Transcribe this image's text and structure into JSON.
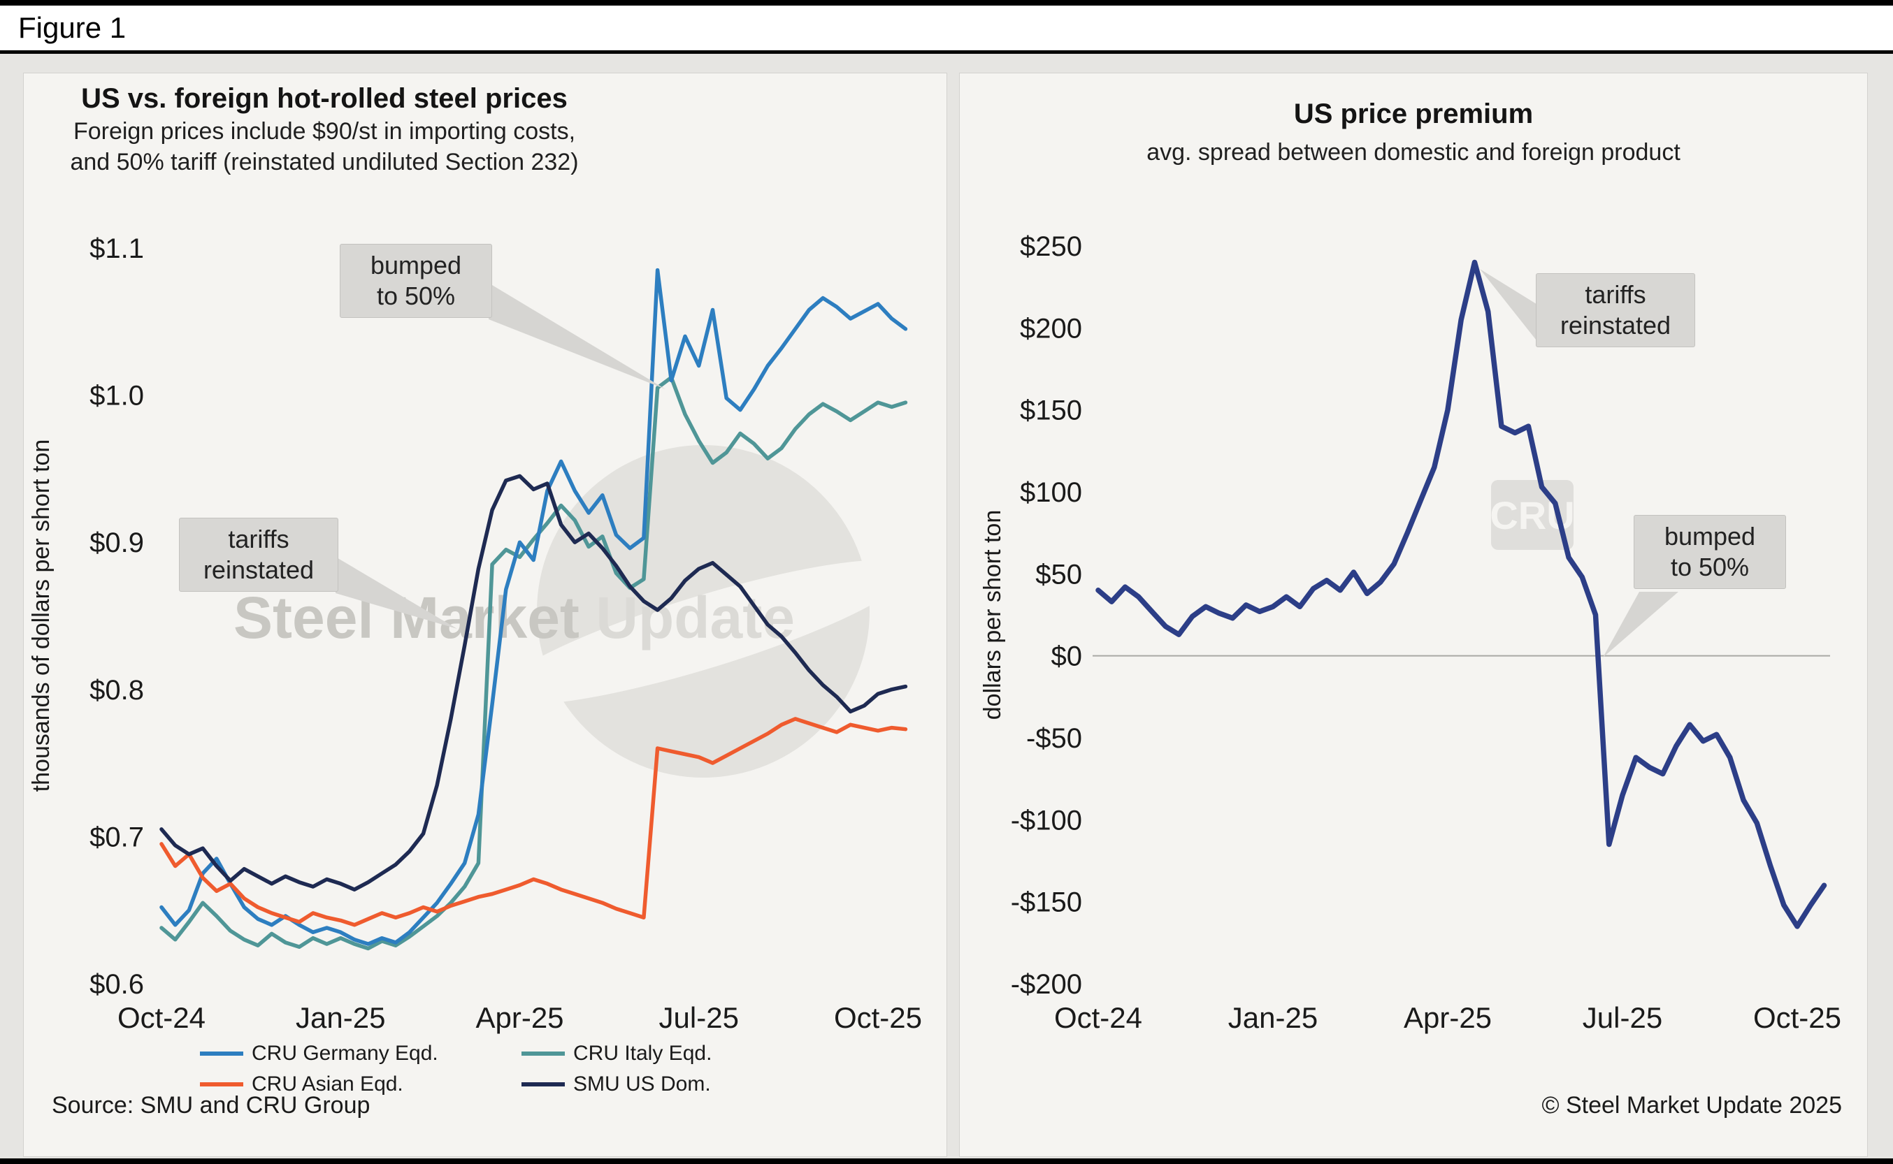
{
  "header": {
    "figure_label": "Figure 1"
  },
  "left_chart": {
    "title": "US vs. foreign hot-rolled steel prices",
    "subtitle_line1": "Foreign prices include $90/st in importing costs,",
    "subtitle_line2": "and 50% tariff (reinstated undiluted Section 232)",
    "y_axis_label": "thousands of dollars per short ton",
    "source": "Source: SMU and CRU Group",
    "annotations": {
      "bumped": {
        "line1": "bumped",
        "line2": "to 50%"
      },
      "tariffs": {
        "line1": "tariffs",
        "line2": "reinstated"
      }
    },
    "watermark": {
      "text_primary": "Steel Market",
      "text_secondary": "Update"
    }
  },
  "right_chart": {
    "title": "US price premium",
    "subtitle": "avg. spread between domestic and foreign product",
    "y_axis_label": "dollars per short ton",
    "copyright": "© Steel Market Update 2025",
    "annotations": {
      "tariffs": {
        "line1": "tariffs",
        "line2": "reinstated"
      },
      "bumped": {
        "line1": "bumped",
        "line2": "to 50%"
      }
    },
    "watermark": {
      "text": "CRU"
    }
  },
  "chart_data": [
    {
      "type": "line",
      "title": "US vs. foreign hot-rolled steel prices",
      "subtitle": "Foreign prices include $90/st in importing costs, and 50% tariff (reinstated undiluted Section 232)",
      "ylabel": "thousands of dollars per short ton",
      "xlabel": "",
      "x_frequency": "weekly",
      "x_tick_labels": [
        "Oct-24",
        "Jan-25",
        "Apr-25",
        "Jul-25",
        "Oct-25"
      ],
      "x_tick_weeks": [
        0,
        13,
        26,
        39,
        52
      ],
      "y_ticks": [
        0.6,
        0.7,
        0.8,
        0.9,
        1.0,
        1.1
      ],
      "y_tick_labels": [
        "$0.6",
        "$0.7",
        "$0.8",
        "$0.9",
        "$1.0",
        "$1.1"
      ],
      "ylim": [
        0.6,
        1.1
      ],
      "grid": false,
      "legend_position": "bottom",
      "annotations": [
        "bumped to 50%",
        "tariffs reinstated"
      ],
      "series": [
        {
          "name": "CRU Germany Eqd.",
          "color": "#2d7ec0",
          "values": [
            0.652,
            0.64,
            0.65,
            0.675,
            0.685,
            0.668,
            0.652,
            0.644,
            0.64,
            0.646,
            0.64,
            0.635,
            0.638,
            0.635,
            0.63,
            0.627,
            0.631,
            0.628,
            0.635,
            0.645,
            0.655,
            0.668,
            0.682,
            0.715,
            0.79,
            0.868,
            0.9,
            0.888,
            0.935,
            0.955,
            0.935,
            0.92,
            0.932,
            0.905,
            0.896,
            0.903,
            1.085,
            1.01,
            1.04,
            1.02,
            1.058,
            0.998,
            0.99,
            1.004,
            1.02,
            1.032,
            1.045,
            1.058,
            1.066,
            1.06,
            1.052,
            1.057,
            1.062,
            1.052,
            1.045
          ]
        },
        {
          "name": "CRU Italy Eqd.",
          "color": "#4f9697",
          "values": [
            0.638,
            0.63,
            0.642,
            0.655,
            0.646,
            0.636,
            0.63,
            0.626,
            0.634,
            0.628,
            0.625,
            0.631,
            0.627,
            0.631,
            0.627,
            0.624,
            0.629,
            0.626,
            0.632,
            0.639,
            0.646,
            0.655,
            0.666,
            0.682,
            0.885,
            0.895,
            0.89,
            0.902,
            0.913,
            0.925,
            0.915,
            0.897,
            0.904,
            0.879,
            0.869,
            0.875,
            1.005,
            1.012,
            0.987,
            0.969,
            0.954,
            0.961,
            0.974,
            0.967,
            0.957,
            0.964,
            0.977,
            0.987,
            0.994,
            0.989,
            0.983,
            0.989,
            0.995,
            0.992,
            0.995
          ]
        },
        {
          "name": "CRU Asian Eqd.",
          "color": "#ef5b2e",
          "values": [
            0.695,
            0.68,
            0.688,
            0.672,
            0.663,
            0.668,
            0.658,
            0.652,
            0.648,
            0.645,
            0.642,
            0.648,
            0.645,
            0.643,
            0.64,
            0.644,
            0.648,
            0.645,
            0.648,
            0.652,
            0.649,
            0.653,
            0.656,
            0.659,
            0.661,
            0.664,
            0.667,
            0.671,
            0.668,
            0.664,
            0.661,
            0.658,
            0.655,
            0.651,
            0.648,
            0.645,
            0.76,
            0.758,
            0.756,
            0.754,
            0.75,
            0.755,
            0.76,
            0.765,
            0.77,
            0.776,
            0.78,
            0.777,
            0.774,
            0.771,
            0.776,
            0.774,
            0.772,
            0.774,
            0.773
          ]
        },
        {
          "name": "SMU US Dom.",
          "color": "#1e2a52",
          "values": [
            0.705,
            0.694,
            0.688,
            0.692,
            0.68,
            0.67,
            0.678,
            0.673,
            0.668,
            0.673,
            0.669,
            0.666,
            0.671,
            0.668,
            0.664,
            0.669,
            0.675,
            0.681,
            0.69,
            0.702,
            0.735,
            0.78,
            0.83,
            0.882,
            0.922,
            0.942,
            0.945,
            0.936,
            0.94,
            0.912,
            0.9,
            0.906,
            0.896,
            0.884,
            0.87,
            0.86,
            0.854,
            0.862,
            0.874,
            0.882,
            0.886,
            0.878,
            0.87,
            0.857,
            0.844,
            0.836,
            0.825,
            0.813,
            0.803,
            0.795,
            0.785,
            0.789,
            0.797,
            0.8,
            0.802
          ]
        }
      ]
    },
    {
      "type": "line",
      "title": "US price premium",
      "subtitle": "avg. spread between domestic and foreign product",
      "ylabel": "dollars per short ton",
      "xlabel": "",
      "x_frequency": "weekly",
      "x_tick_labels": [
        "Oct-24",
        "Jan-25",
        "Apr-25",
        "Jul-25",
        "Oct-25"
      ],
      "x_tick_weeks": [
        0,
        13,
        26,
        39,
        52
      ],
      "y_ticks": [
        -200,
        -150,
        -100,
        -50,
        0,
        50,
        100,
        150,
        200,
        250
      ],
      "y_tick_labels": [
        "-$200",
        "-$150",
        "-$100",
        "-$50",
        "$0",
        "$50",
        "$100",
        "$150",
        "$200",
        "$250"
      ],
      "ylim": [
        -200,
        250
      ],
      "grid": false,
      "zero_line": true,
      "legend_position": "none",
      "annotations": [
        "tariffs reinstated",
        "bumped to 50%"
      ],
      "series": [
        {
          "name": "US price premium",
          "color": "#2c3e87",
          "values": [
            40,
            33,
            42,
            36,
            27,
            18,
            13,
            24,
            30,
            26,
            23,
            31,
            27,
            30,
            36,
            30,
            41,
            46,
            40,
            51,
            38,
            45,
            56,
            75,
            95,
            115,
            150,
            205,
            240,
            210,
            140,
            136,
            140,
            103,
            93,
            60,
            48,
            25,
            -115,
            -85,
            -62,
            -68,
            -72,
            -55,
            -42,
            -52,
            -48,
            -62,
            -88,
            -102,
            -128,
            -152,
            -165,
            -152,
            -140
          ]
        }
      ]
    }
  ]
}
